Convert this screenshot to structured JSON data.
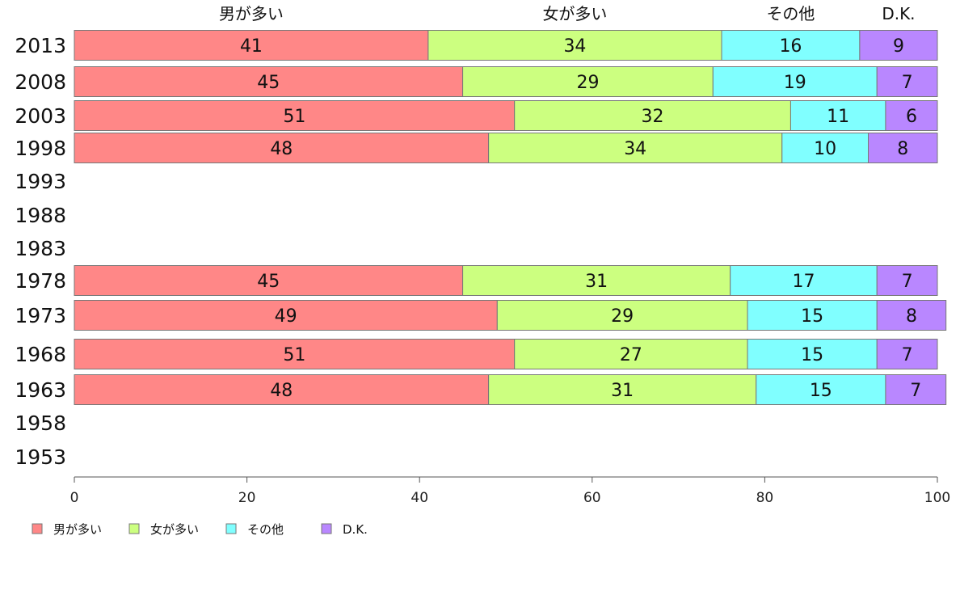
{
  "chart_data": {
    "type": "bar",
    "orientation": "horizontal",
    "stacked": true,
    "categories": [
      "2013",
      "2008",
      "2003",
      "1998",
      "1993",
      "1988",
      "1983",
      "1978",
      "1973",
      "1968",
      "1963",
      "1958",
      "1953"
    ],
    "series": [
      {
        "name": "男が多い",
        "color": "#ff8787",
        "values": [
          41,
          45,
          51,
          48,
          null,
          null,
          null,
          45,
          49,
          51,
          48,
          null,
          null
        ]
      },
      {
        "name": "女が多い",
        "color": "#ccff80",
        "values": [
          34,
          29,
          32,
          34,
          null,
          null,
          null,
          31,
          29,
          27,
          31,
          null,
          null
        ]
      },
      {
        "name": "その他",
        "color": "#80ffff",
        "values": [
          16,
          19,
          11,
          10,
          null,
          null,
          null,
          17,
          15,
          15,
          15,
          null,
          null
        ]
      },
      {
        "name": "D.K.",
        "color": "#b987ff",
        "values": [
          9,
          7,
          6,
          8,
          null,
          null,
          null,
          7,
          8,
          7,
          7,
          null,
          null
        ]
      }
    ],
    "xlim": [
      0,
      100
    ],
    "xticks": [
      "0",
      "20",
      "40",
      "60",
      "80",
      "100"
    ],
    "legend_position": "bottom-left",
    "grid": false
  }
}
